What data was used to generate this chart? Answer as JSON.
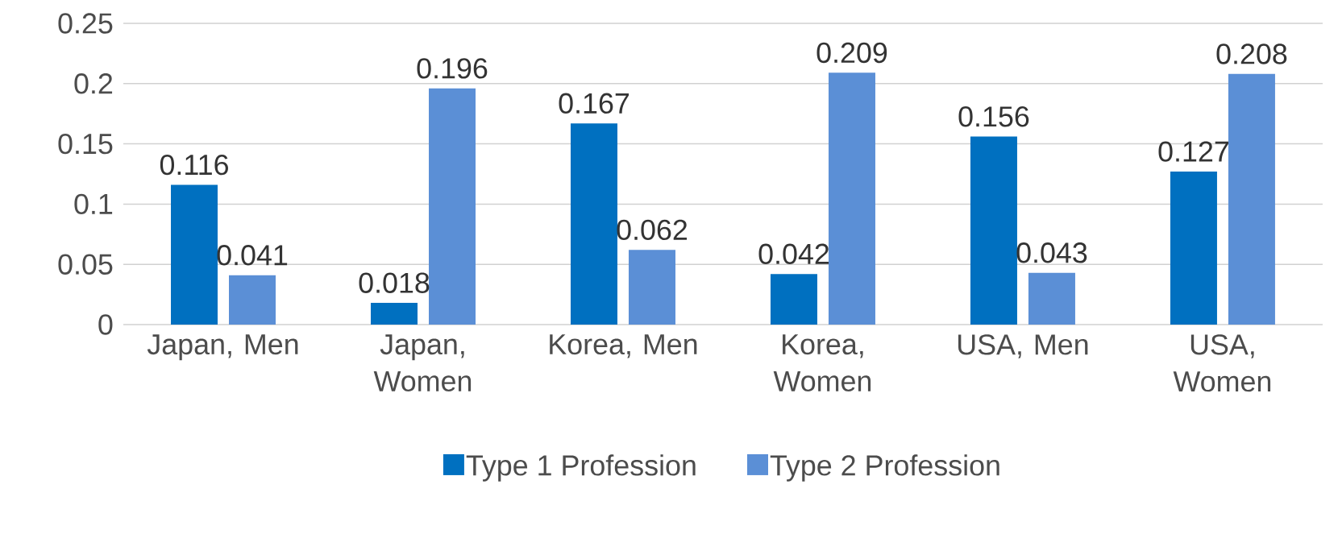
{
  "chart_data": {
    "type": "bar",
    "categories": [
      "Japan, Men",
      "Japan, Women",
      "Korea, Men",
      "Korea, Women",
      "USA, Men",
      "USA, Women"
    ],
    "series": [
      {
        "name": "Type 1 Profession",
        "color": "#0070c0",
        "values": [
          0.116,
          0.018,
          0.167,
          0.042,
          0.156,
          0.127
        ]
      },
      {
        "name": "Type 2 Profession",
        "color": "#5b8fd6",
        "values": [
          0.041,
          0.196,
          0.062,
          0.209,
          0.043,
          0.208
        ]
      }
    ],
    "ylim": [
      0,
      0.25
    ],
    "yticks": [
      0,
      0.05,
      0.1,
      0.15,
      0.2,
      0.25
    ],
    "grid": "y",
    "legend": "bottom",
    "data_labels": true
  }
}
